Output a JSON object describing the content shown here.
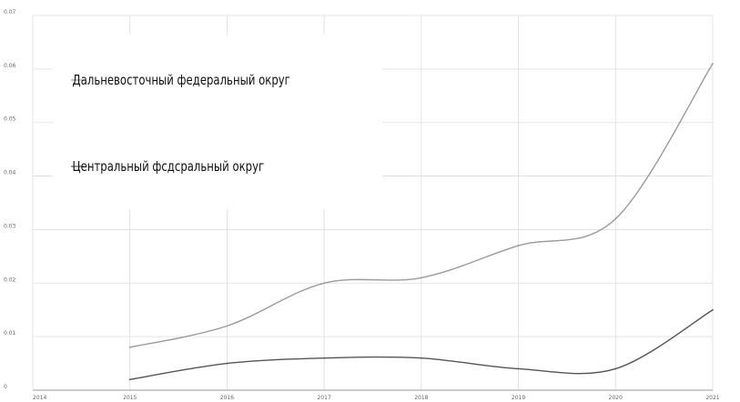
{
  "chart_data": {
    "type": "line",
    "title": "",
    "xlabel": "",
    "ylabel": "",
    "xlim": [
      2014,
      2021
    ],
    "ylim": [
      0,
      0.07
    ],
    "x": [
      2015,
      2016,
      2017,
      2018,
      2019,
      2020,
      2021
    ],
    "x_ticks": [
      "2014",
      "2015",
      "2016",
      "2017",
      "2018",
      "2019",
      "2020",
      "2021"
    ],
    "y_ticks": [
      "0",
      "0.01",
      "0.02",
      "0.03",
      "0.04",
      "0.05",
      "0.06",
      "0.07"
    ],
    "grid": true,
    "legend_position": "top-left",
    "series": [
      {
        "name": "Дальневосточный федеральный округ",
        "color": "#9b9b9b",
        "values": [
          0.008,
          0.012,
          0.02,
          0.021,
          0.027,
          0.032,
          0.061
        ]
      },
      {
        "name": "Центральный фсдсральный округ",
        "color": "#555555",
        "values": [
          0.002,
          0.005,
          0.006,
          0.006,
          0.004,
          0.004,
          0.015
        ]
      }
    ]
  }
}
